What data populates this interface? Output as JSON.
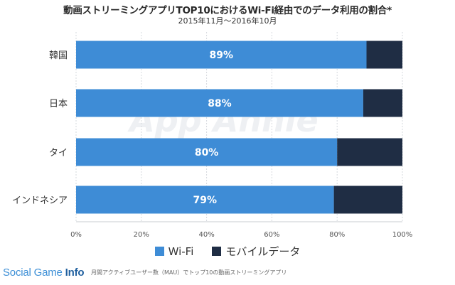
{
  "header": {
    "title": "動画ストリーミングアプリTOP10におけるWi-Fi経由でのデータ利用の割合*",
    "subtitle": "2015年11月～2016年10月"
  },
  "watermark": "App Annie",
  "footnote": "月間アクティブユーザー数（MAU）でトップ10の動画ストリーミングアプリ",
  "brand": {
    "part1": "Social Game ",
    "part2": "Info"
  },
  "colors": {
    "wifi": "#3e8cd6",
    "mobile": "#1f2d44"
  },
  "chart_data": {
    "type": "bar",
    "orientation": "horizontal",
    "stacked": true,
    "categories": [
      "韓国",
      "日本",
      "タイ",
      "インドネシア"
    ],
    "series": [
      {
        "name": "Wi-Fi",
        "values": [
          89,
          88,
          80,
          79
        ],
        "labels": [
          "89%",
          "88%",
          "80%",
          "79%"
        ]
      },
      {
        "name": "モバイルデータ",
        "values": [
          11,
          12,
          20,
          21
        ]
      }
    ],
    "xlim": [
      0,
      100
    ],
    "xticks": [
      "0%",
      "20%",
      "40%",
      "60%",
      "80%",
      "100%"
    ],
    "grid": true,
    "legend": "bottom"
  }
}
